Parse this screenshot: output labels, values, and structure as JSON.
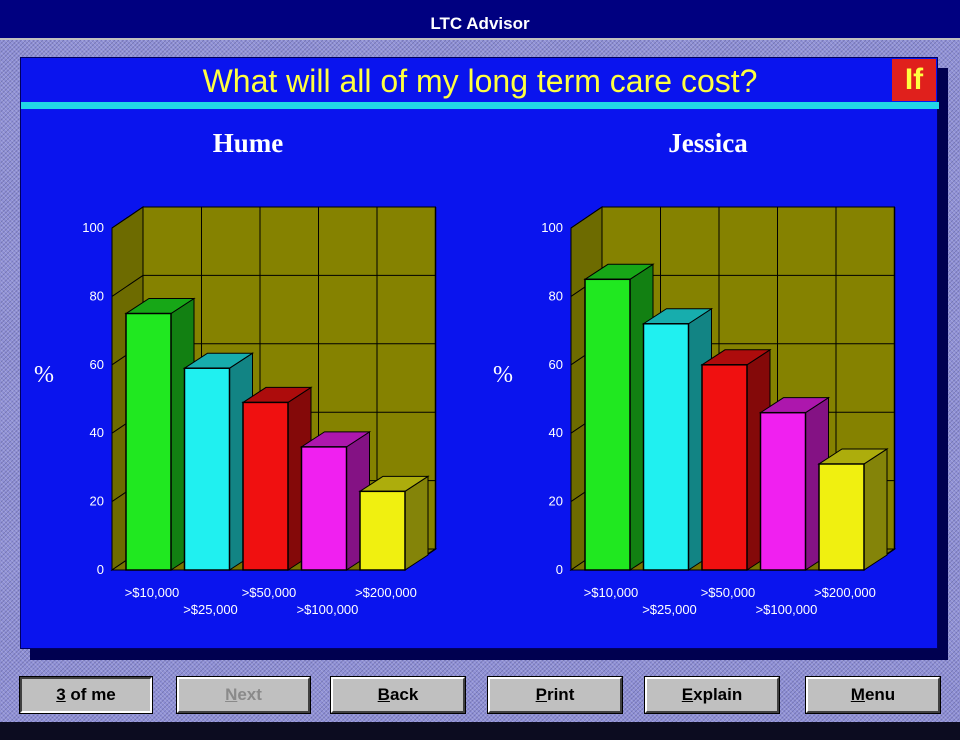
{
  "window": {
    "title": "LTC Advisor"
  },
  "panel": {
    "heading": "What will all of my long term care cost?",
    "badge": "If"
  },
  "colors": {
    "bars": [
      "#20e820",
      "#20f0f0",
      "#f01010",
      "#f020f0",
      "#f0f010"
    ],
    "floor": "#858200",
    "panel": "#0a14ee"
  },
  "chart_data": [
    {
      "type": "bar",
      "title": "Hume",
      "ylabel": "%",
      "ylim": [
        0,
        100
      ],
      "yticks": [
        "0",
        "20",
        "40",
        "60",
        "80",
        "100"
      ],
      "categories": [
        ">$10,000",
        ">$25,000",
        ">$50,000",
        ">$100,000",
        ">$200,000"
      ],
      "values": [
        75,
        59,
        49,
        36,
        23
      ],
      "grid": true,
      "three_d": true
    },
    {
      "type": "bar",
      "title": "Jessica",
      "ylabel": "%",
      "ylim": [
        0,
        100
      ],
      "yticks": [
        "0",
        "20",
        "40",
        "60",
        "80",
        "100"
      ],
      "categories": [
        ">$10,000",
        ">$25,000",
        ">$50,000",
        ">$100,000",
        ">$200,000"
      ],
      "values": [
        85,
        72,
        60,
        46,
        31
      ],
      "grid": true,
      "three_d": true
    }
  ],
  "buttons": {
    "three_of_me": {
      "key": "3",
      "rest": " of me"
    },
    "next": {
      "key": "N",
      "rest": "ext"
    },
    "back": {
      "key": "B",
      "rest": "ack"
    },
    "print": {
      "key": "P",
      "rest": "rint"
    },
    "explain": {
      "key": "E",
      "rest": "xplain"
    },
    "menu": {
      "key": "M",
      "rest": "enu"
    }
  }
}
